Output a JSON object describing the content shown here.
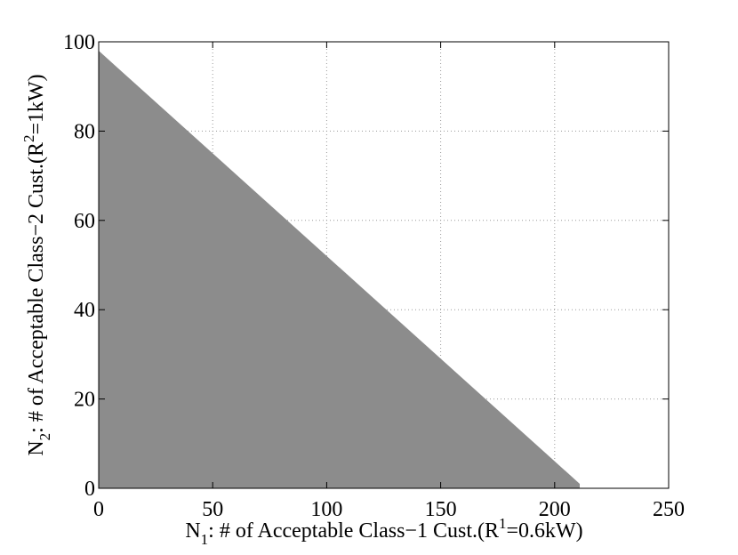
{
  "chart_data": {
    "type": "area",
    "title": "",
    "xlabel": {
      "main": "N",
      "sub": "1",
      "rest": ": # of Acceptable Class−1 Cust.(R",
      "sup": "1",
      "end": "=0.6kW)"
    },
    "ylabel": {
      "main": "N",
      "sub": "2",
      "rest": ": # of Acceptable Class−2 Cust.(R",
      "sup": "2",
      "end": "=1kW)"
    },
    "xlim": [
      0,
      250
    ],
    "ylim": [
      0,
      100
    ],
    "xticks": [
      0,
      50,
      100,
      150,
      200,
      250
    ],
    "yticks": [
      0,
      20,
      40,
      60,
      80,
      100
    ],
    "xtick_labels": [
      "0",
      "50",
      "100",
      "150",
      "200",
      "250"
    ],
    "ytick_labels": [
      "0",
      "20",
      "40",
      "60",
      "80",
      "100"
    ],
    "grid": true,
    "series": [
      {
        "fill_color": "#8c8c8c",
        "boundary": [
          {
            "x": 0,
            "y": 0
          },
          {
            "x": 0,
            "y": 98
          },
          {
            "x": 211,
            "y": 1
          },
          {
            "x": 211,
            "y": 0
          }
        ]
      }
    ]
  }
}
